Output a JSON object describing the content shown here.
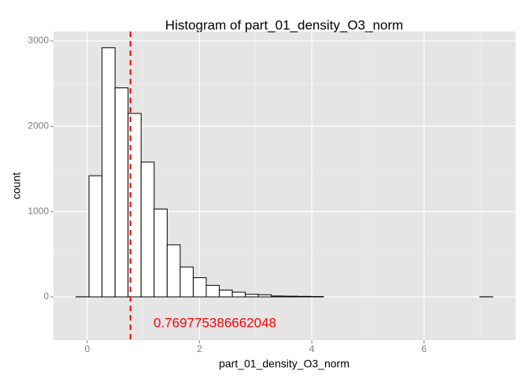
{
  "chart_data": {
    "type": "histogram",
    "title": "Histogram of  part_01_density_O3_norm",
    "x_label": "part_01_density_O3_norm",
    "y_label": "count",
    "bins": [
      -0.2,
      0.032,
      0.264,
      0.496,
      0.728,
      0.96,
      1.192,
      1.424,
      1.656,
      1.888,
      2.12,
      2.352,
      2.584,
      2.816,
      3.048,
      3.28,
      3.512,
      3.744,
      3.976,
      4.208,
      4.44,
      4.672,
      4.904,
      5.136,
      5.368,
      5.6,
      5.832,
      6.064,
      6.296,
      6.528,
      6.76,
      6.992,
      7.224
    ],
    "counts": [
      1,
      1420,
      2920,
      2450,
      2150,
      1580,
      1030,
      610,
      350,
      225,
      135,
      80,
      55,
      30,
      25,
      10,
      8,
      6,
      4,
      0,
      0,
      0,
      0,
      0,
      0,
      0,
      0,
      0,
      0,
      0,
      0,
      1
    ],
    "color": "#ffffff",
    "edge_color": "#000000",
    "xlim": [
      -0.6,
      7.63
    ],
    "ylim": [
      -508,
      3111
    ],
    "xticks": [
      0,
      2,
      4,
      6
    ],
    "yticks": [
      0,
      1000,
      2000,
      3000
    ],
    "grid": true,
    "mean_line": {
      "value": 0.769775386662048,
      "label": "0.769775386662048",
      "color": "#ff0000"
    }
  }
}
